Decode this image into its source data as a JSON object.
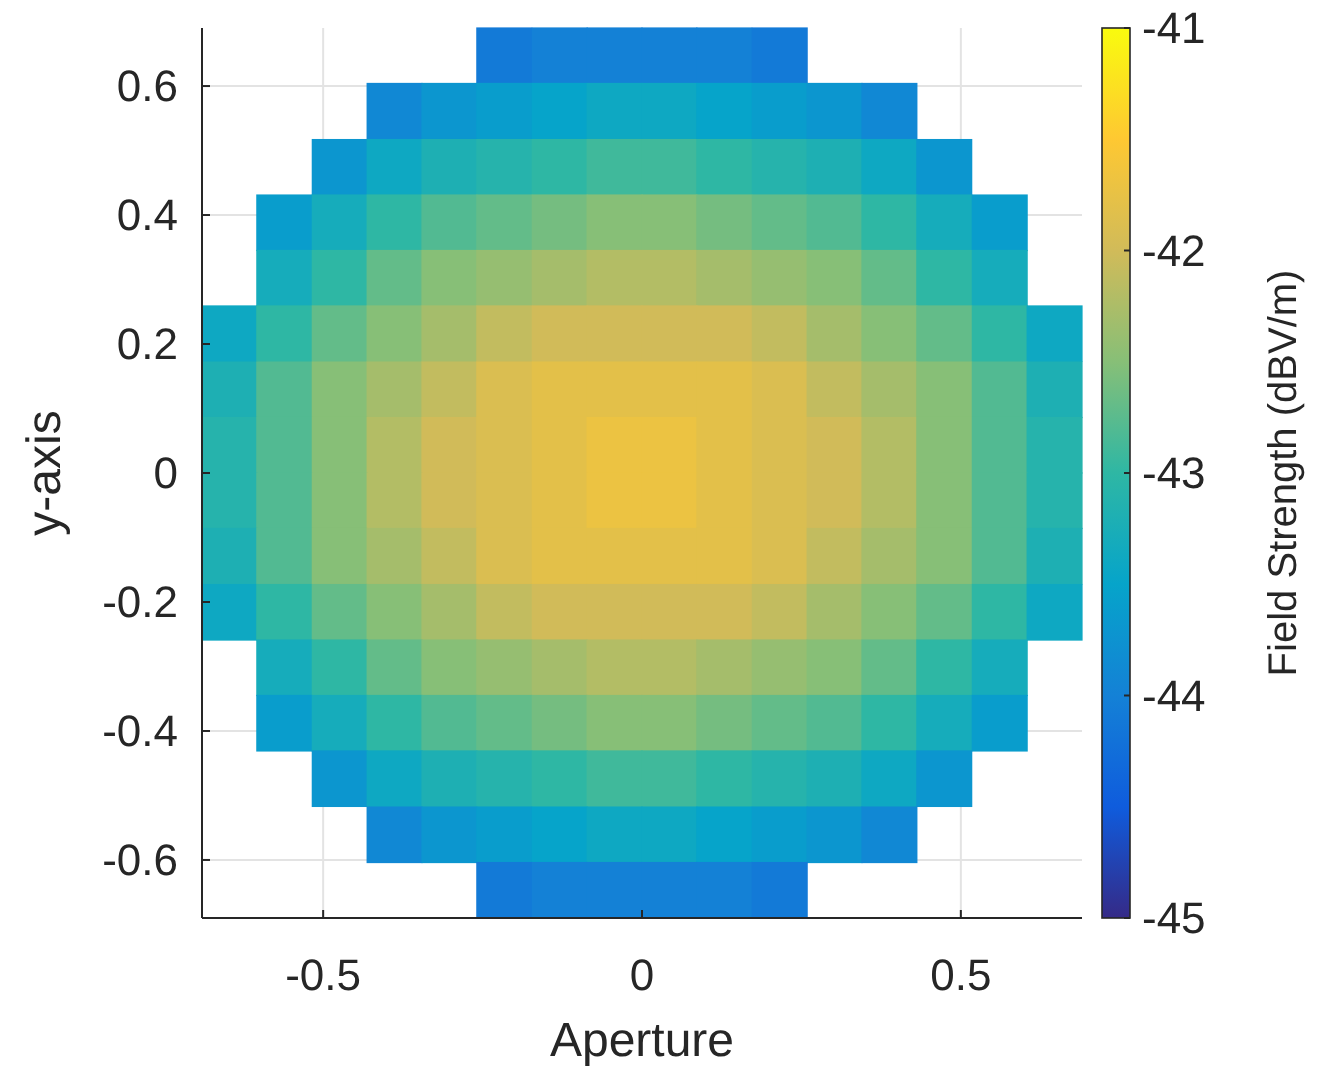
{
  "chart_data": {
    "type": "heatmap",
    "xlabel": "Aperture",
    "ylabel": "y-axis",
    "clabel": "Field Strength (dBV/m)",
    "x": [
      -0.647,
      -0.561,
      -0.474,
      -0.388,
      -0.302,
      -0.216,
      -0.129,
      -0.043,
      0.043,
      0.129,
      0.216,
      0.302,
      0.388,
      0.474,
      0.561,
      0.647
    ],
    "y": [
      0.647,
      0.561,
      0.474,
      0.388,
      0.302,
      0.216,
      0.129,
      0.043,
      -0.043,
      -0.129,
      -0.216,
      -0.302,
      -0.388,
      -0.474,
      -0.561,
      -0.647
    ],
    "xlim": [
      -0.69,
      0.69
    ],
    "ylim": [
      -0.69,
      0.69
    ],
    "xticks": [
      -0.5,
      0,
      0.5
    ],
    "yticks": [
      -0.6,
      -0.4,
      -0.2,
      0,
      0.2,
      0.4,
      0.6
    ],
    "clim": [
      -45,
      -41
    ],
    "cticks": [
      -45,
      -44,
      -43,
      -42,
      -41
    ],
    "grid": true,
    "cells": [
      [
        null,
        null,
        null,
        null,
        null,
        -44.1,
        -44.0,
        -44.0,
        -44.0,
        -44.0,
        -44.1,
        null,
        null,
        null,
        null,
        null
      ],
      [
        null,
        null,
        null,
        -43.9,
        -43.7,
        -43.6,
        -43.5,
        -43.4,
        -43.4,
        -43.5,
        -43.6,
        -43.7,
        -43.9,
        null,
        null,
        null
      ],
      [
        null,
        null,
        -43.7,
        -43.4,
        -43.2,
        -43.1,
        -43.0,
        -42.9,
        -42.9,
        -43.0,
        -43.1,
        -43.2,
        -43.4,
        -43.7,
        null,
        null
      ],
      [
        null,
        -43.6,
        -43.3,
        -43.0,
        -42.8,
        -42.7,
        -42.6,
        -42.5,
        -42.5,
        -42.6,
        -42.7,
        -42.8,
        -43.0,
        -43.3,
        -43.6,
        null
      ],
      [
        null,
        -43.3,
        -43.0,
        -42.7,
        -42.5,
        -42.4,
        -42.3,
        -42.2,
        -42.2,
        -42.3,
        -42.4,
        -42.5,
        -42.7,
        -43.0,
        -43.3,
        null
      ],
      [
        -43.4,
        -43.0,
        -42.7,
        -42.5,
        -42.3,
        -42.1,
        -42.0,
        -42.0,
        -42.0,
        -42.0,
        -42.1,
        -42.3,
        -42.5,
        -42.7,
        -43.0,
        -43.4
      ],
      [
        -43.2,
        -42.8,
        -42.5,
        -42.3,
        -42.1,
        -41.9,
        -41.8,
        -41.8,
        -41.8,
        -41.8,
        -41.9,
        -42.1,
        -42.3,
        -42.5,
        -42.8,
        -43.2
      ],
      [
        -43.1,
        -42.8,
        -42.5,
        -42.2,
        -42.0,
        -41.9,
        -41.8,
        -41.7,
        -41.7,
        -41.8,
        -41.9,
        -42.0,
        -42.2,
        -42.5,
        -42.8,
        -43.1
      ],
      [
        -43.1,
        -42.8,
        -42.5,
        -42.2,
        -42.0,
        -41.9,
        -41.8,
        -41.7,
        -41.7,
        -41.8,
        -41.9,
        -42.0,
        -42.2,
        -42.5,
        -42.8,
        -43.1
      ],
      [
        -43.2,
        -42.8,
        -42.5,
        -42.3,
        -42.1,
        -41.9,
        -41.8,
        -41.8,
        -41.8,
        -41.8,
        -41.9,
        -42.1,
        -42.3,
        -42.5,
        -42.8,
        -43.2
      ],
      [
        -43.4,
        -43.0,
        -42.7,
        -42.5,
        -42.3,
        -42.1,
        -42.0,
        -42.0,
        -42.0,
        -42.0,
        -42.1,
        -42.3,
        -42.5,
        -42.7,
        -43.0,
        -43.4
      ],
      [
        null,
        -43.3,
        -43.0,
        -42.7,
        -42.5,
        -42.4,
        -42.3,
        -42.2,
        -42.2,
        -42.3,
        -42.4,
        -42.5,
        -42.7,
        -43.0,
        -43.3,
        null
      ],
      [
        null,
        -43.6,
        -43.3,
        -43.0,
        -42.8,
        -42.7,
        -42.6,
        -42.5,
        -42.5,
        -42.6,
        -42.7,
        -42.8,
        -43.0,
        -43.3,
        -43.6,
        null
      ],
      [
        null,
        null,
        -43.7,
        -43.4,
        -43.2,
        -43.1,
        -43.0,
        -42.9,
        -42.9,
        -43.0,
        -43.1,
        -43.2,
        -43.4,
        -43.7,
        null,
        null
      ],
      [
        null,
        null,
        null,
        -43.9,
        -43.7,
        -43.6,
        -43.5,
        -43.4,
        -43.4,
        -43.5,
        -43.6,
        -43.7,
        -43.9,
        null,
        null,
        null
      ],
      [
        null,
        null,
        null,
        null,
        null,
        -44.1,
        -44.0,
        -44.0,
        -44.0,
        -44.0,
        -44.1,
        null,
        null,
        null,
        null,
        null
      ]
    ]
  }
}
